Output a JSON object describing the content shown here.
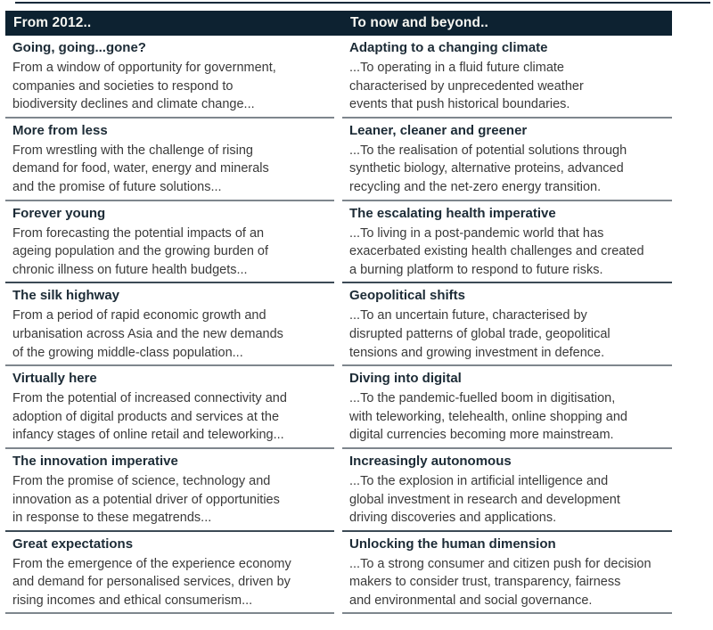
{
  "colors": {
    "header_background": "#0d2231",
    "header_text": "#f7f7f2",
    "row_title_text": "#1c2b36",
    "row_body_text": "#3a3a3a",
    "divider_gray": "#7e868d",
    "divider_dark": "#3c4a55",
    "top_rule": "#13293a"
  },
  "header": {
    "left": "From 2012..",
    "right": "To now and beyond.."
  },
  "rows": [
    {
      "left": {
        "title": "Going, going...gone?",
        "body": "From a window of opportunity for government,\ncompanies and societies to respond to\nbiodiversity declines and climate change..."
      },
      "right": {
        "title": "Adapting to a changing climate",
        "body": "...To operating in a fluid future climate\ncharacterised by unprecedented weather\nevents that push historical boundaries."
      }
    },
    {
      "left": {
        "title": "More from less",
        "body": "From wrestling with the challenge of rising\ndemand for food, water, energy and minerals\nand the promise of future solutions..."
      },
      "right": {
        "title": "Leaner, cleaner and greener",
        "body": "...To the realisation of potential solutions through\nsynthetic biology, alternative proteins, advanced\nrecycling and the net-zero energy transition."
      }
    },
    {
      "left": {
        "title": "Forever young",
        "body": "From forecasting the potential impacts of an\nageing population and the growing burden of\nchronic illness on future health budgets..."
      },
      "right": {
        "title": "The escalating health imperative",
        "body": "...To living in a post-pandemic world that has\nexacerbated existing health challenges and created\na burning platform to respond to future risks."
      }
    },
    {
      "left": {
        "title": "The silk highway",
        "body": "From a period of rapid economic growth and\nurbanisation across Asia and the new demands\nof the growing middle-class population..."
      },
      "right": {
        "title": "Geopolitical shifts",
        "body": "...To an uncertain future, characterised by\ndisrupted patterns of global trade, geopolitical\ntensions and growing investment in defence."
      }
    },
    {
      "left": {
        "title": "Virtually here",
        "body": "From the potential of increased connectivity and\nadoption of digital products and services at the\ninfancy stages of online retail and teleworking..."
      },
      "right": {
        "title": "Diving into digital",
        "body": "...To the pandemic-fuelled boom in digitisation,\nwith teleworking, telehealth, online shopping and\ndigital currencies becoming more mainstream."
      }
    },
    {
      "left": {
        "title": "The innovation imperative",
        "body": "From the promise of science, technology and\ninnovation as a potential driver of opportunities\nin response to these megatrends..."
      },
      "right": {
        "title": "Increasingly autonomous",
        "body": "...To the explosion in artificial intelligence and\nglobal investment in research and development\ndriving discoveries and applications."
      }
    },
    {
      "left": {
        "title": "Great expectations",
        "body": "From the emergence of the experience economy\nand demand for personalised services, driven by\nrising incomes and ethical consumerism..."
      },
      "right": {
        "title": "Unlocking the human dimension",
        "body": "...To a strong consumer and citizen push for decision\nmakers to consider trust, transparency, fairness\nand environmental and social governance."
      }
    }
  ]
}
